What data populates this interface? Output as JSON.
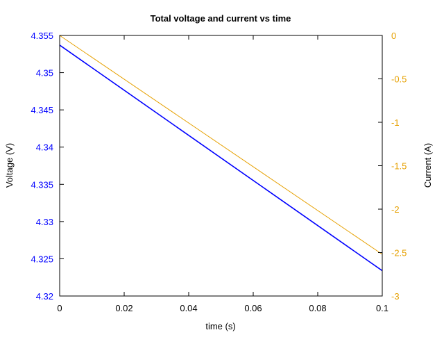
{
  "chart_data": {
    "type": "line",
    "title": "Total voltage and current vs time",
    "xlabel": "time (s)",
    "ylabel": "Voltage (V)",
    "y2label": "Current (A)",
    "xlim": [
      0,
      0.1
    ],
    "ylim": [
      4.32,
      4.355
    ],
    "y2lim": [
      -3,
      0
    ],
    "xticks": [
      "0",
      "0.02",
      "0.04",
      "0.06",
      "0.08",
      "0.1"
    ],
    "yticks": [
      "4.32",
      "4.325",
      "4.33",
      "4.335",
      "4.34",
      "4.345",
      "4.35",
      "4.355"
    ],
    "y2ticks": [
      "-3",
      "-2.5",
      "-2",
      "-1.5",
      "-1",
      "-0.5",
      "0"
    ],
    "grid": false,
    "legend": "none",
    "colors": {
      "voltage": "#0000ff",
      "current": "#e6a000",
      "axes": "#000000"
    },
    "series": [
      {
        "axis": "left",
        "x": [
          0,
          0.1
        ],
        "values": [
          4.3537,
          4.3234
        ]
      },
      {
        "axis": "right",
        "x": [
          0,
          0.1
        ],
        "values": [
          0,
          -2.52
        ]
      }
    ]
  }
}
